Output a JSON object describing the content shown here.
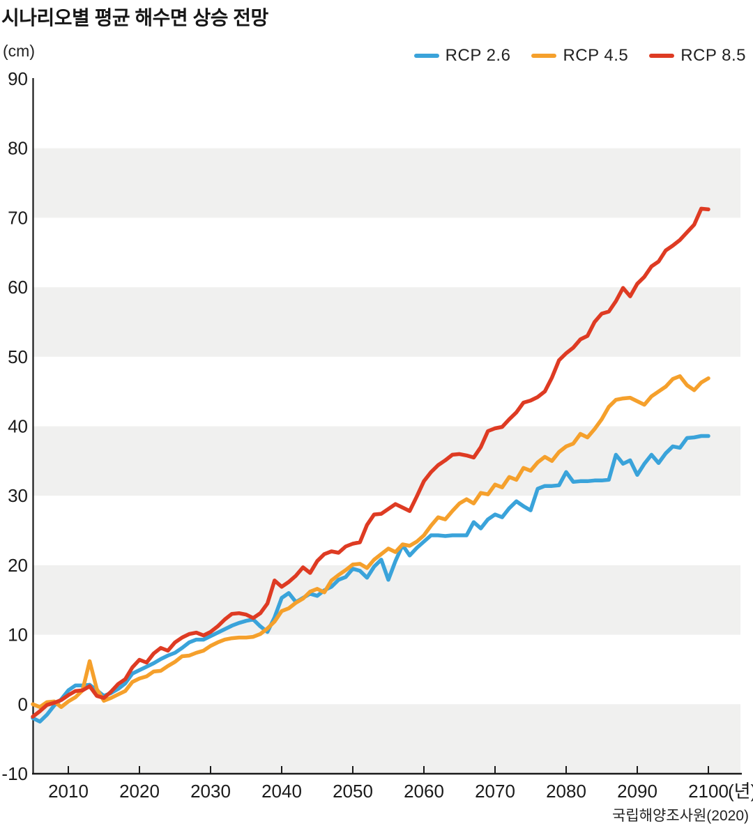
{
  "title": "시나리오별 평균 해수면 상승 전망",
  "y_axis_unit_label": "(cm)",
  "x_axis_unit_label": "(년)",
  "source": "국립해양조사원(2020)",
  "colors": {
    "rcp26": "#3aa3da",
    "rcp45": "#f5a02c",
    "rcp85": "#de3b23",
    "band": "#f0f0ef",
    "axis": "#1a1a1a",
    "text": "#1a1a1a"
  },
  "chart_data": {
    "type": "line",
    "title": "시나리오별 평균 해수면 상승 전망",
    "xlabel": "(년)",
    "ylabel": "(cm)",
    "ylim": [
      -10,
      90
    ],
    "xlim": [
      2005,
      2104
    ],
    "grid": "alternating-horizontal-bands",
    "gray_bands": [
      [
        -10,
        0
      ],
      [
        10,
        20
      ],
      [
        30,
        40
      ],
      [
        50,
        60
      ],
      [
        70,
        80
      ]
    ],
    "legend_position": "top-right",
    "y_ticks": [
      90,
      80,
      70,
      60,
      50,
      40,
      30,
      20,
      10,
      0,
      -10
    ],
    "x_ticks": [
      2010,
      2020,
      2030,
      2040,
      2050,
      2060,
      2070,
      2080,
      2090,
      2100
    ],
    "x_start": 2005,
    "x_step": 1,
    "series": [
      {
        "id": "rcp26",
        "name": "RCP 2.6",
        "color": "#3aa3da",
        "values": [
          -2.0,
          -2.5,
          -1.5,
          -0.2,
          0.7,
          2.0,
          2.7,
          2.7,
          2.8,
          2.0,
          1.2,
          1.6,
          2.2,
          3.0,
          4.4,
          4.9,
          5.4,
          5.9,
          6.5,
          7.0,
          7.4,
          8.1,
          8.9,
          9.3,
          9.3,
          9.8,
          10.3,
          10.8,
          11.3,
          11.7,
          12.0,
          12.2,
          11.2,
          10.4,
          12.5,
          15.3,
          16.0,
          14.7,
          15.3,
          15.9,
          15.6,
          16.4,
          16.9,
          17.9,
          18.3,
          19.5,
          19.2,
          18.2,
          19.8,
          20.8,
          17.9,
          20.6,
          22.9,
          21.4,
          22.5,
          23.4,
          24.3,
          24.3,
          24.2,
          24.3,
          24.3,
          24.3,
          26.2,
          25.3,
          26.6,
          27.3,
          26.9,
          28.2,
          29.2,
          28.5,
          27.9,
          31.0,
          31.4,
          31.4,
          31.5,
          33.4,
          32.0,
          32.1,
          32.1,
          32.2,
          32.2,
          32.3,
          35.9,
          34.6,
          35.1,
          33.0,
          34.6,
          35.9,
          34.7,
          36.1,
          37.1,
          36.9,
          38.3,
          38.4,
          38.6,
          38.6
        ]
      },
      {
        "id": "rcp45",
        "name": "RCP 4.5",
        "color": "#f5a02c",
        "values": [
          0.0,
          -0.4,
          0.3,
          0.4,
          -0.4,
          0.4,
          1.0,
          2.0,
          6.2,
          2.2,
          0.5,
          0.9,
          1.4,
          1.9,
          3.2,
          3.7,
          4.0,
          4.7,
          4.8,
          5.5,
          6.1,
          6.9,
          7.0,
          7.4,
          7.7,
          8.4,
          8.9,
          9.3,
          9.5,
          9.6,
          9.6,
          9.7,
          10.1,
          10.9,
          11.9,
          13.4,
          13.8,
          14.6,
          15.2,
          16.2,
          16.6,
          16.1,
          17.8,
          18.6,
          19.3,
          20.1,
          20.2,
          19.6,
          20.8,
          21.6,
          22.4,
          21.9,
          23.0,
          22.8,
          23.4,
          24.3,
          25.7,
          26.9,
          26.6,
          27.8,
          28.9,
          29.5,
          28.9,
          30.4,
          30.2,
          31.6,
          31.2,
          32.7,
          32.3,
          34.0,
          33.6,
          34.8,
          35.6,
          35.0,
          36.3,
          37.1,
          37.5,
          38.9,
          38.4,
          39.6,
          41.0,
          42.8,
          43.8,
          44.0,
          44.1,
          43.6,
          43.1,
          44.3,
          45.0,
          45.7,
          46.8,
          47.2,
          45.9,
          45.2,
          46.3,
          46.9
        ]
      },
      {
        "id": "rcp85",
        "name": "RCP 8.5",
        "color": "#de3b23",
        "values": [
          -1.8,
          -1.0,
          -0.1,
          0.2,
          0.6,
          1.3,
          1.9,
          2.0,
          2.6,
          1.2,
          0.9,
          1.8,
          2.9,
          3.6,
          5.3,
          6.4,
          6.0,
          7.3,
          8.1,
          7.7,
          8.9,
          9.6,
          10.1,
          10.3,
          9.9,
          10.4,
          11.2,
          12.2,
          13.0,
          13.1,
          12.9,
          12.4,
          13.1,
          14.5,
          17.8,
          16.9,
          17.6,
          18.5,
          19.7,
          18.9,
          20.6,
          21.6,
          22.0,
          21.8,
          22.7,
          23.1,
          23.3,
          25.8,
          27.3,
          27.4,
          28.1,
          28.8,
          28.3,
          27.8,
          29.9,
          32.1,
          33.4,
          34.4,
          35.1,
          35.9,
          36.0,
          35.8,
          35.5,
          37.0,
          39.3,
          39.7,
          39.9,
          41.0,
          42.0,
          43.4,
          43.7,
          44.2,
          45.0,
          47.0,
          49.5,
          50.5,
          51.3,
          52.5,
          53.0,
          55.0,
          56.2,
          56.5,
          58.0,
          59.9,
          58.7,
          60.5,
          61.5,
          63.0,
          63.7,
          65.3,
          66.0,
          66.8,
          67.9,
          69.0,
          71.3,
          71.2
        ]
      }
    ]
  }
}
